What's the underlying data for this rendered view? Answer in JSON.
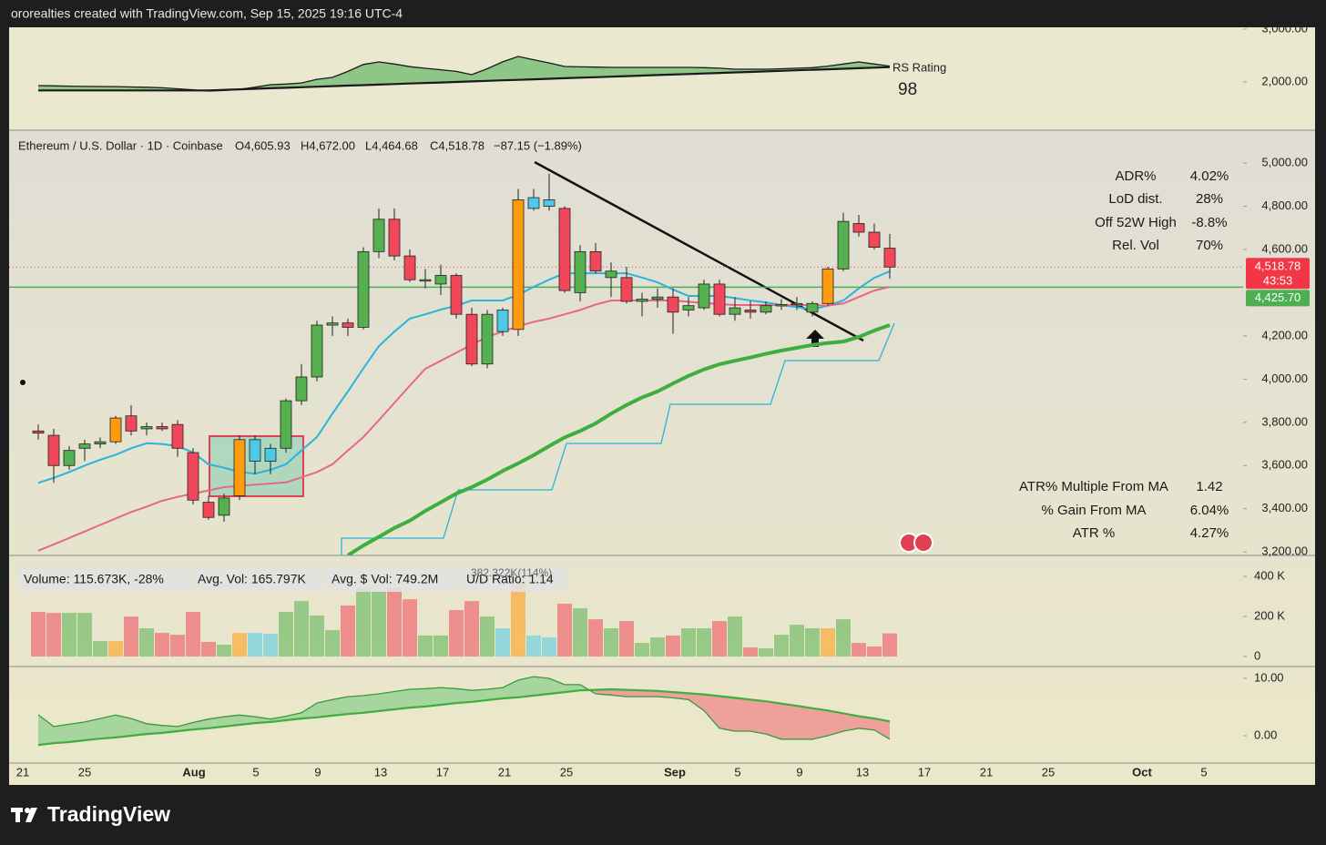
{
  "header": {
    "credit": "ororealties created with TradingView.com, Sep 15, 2025 19:16 UTC-4"
  },
  "footer": {
    "brand": "TradingView"
  },
  "x_axis": {
    "labels": [
      "21",
      "25",
      "Aug",
      "5",
      "9",
      "13",
      "17",
      "21",
      "25",
      "Sep",
      "5",
      "9",
      "13",
      "17",
      "21",
      "25",
      "Oct",
      "5"
    ]
  },
  "stats_top": [
    {
      "label": "ADR%",
      "value": "4.02%"
    },
    {
      "label": "LoD dist.",
      "value": "28%"
    },
    {
      "label": "Off 52W High",
      "value": "-8.8%"
    },
    {
      "label": "Rel. Vol",
      "value": "70%"
    }
  ],
  "stats_bottom": [
    {
      "label": "ATR% Multiple From MA",
      "value": "1.42"
    },
    {
      "label": "% Gain From MA",
      "value": "6.04%"
    },
    {
      "label": "ATR %",
      "value": "4.27%"
    }
  ],
  "chart_data": [
    {
      "type": "line",
      "title": "RS Rating",
      "rating": "98",
      "ylim": [
        1086,
        3034
      ],
      "yticks": [
        {
          "value": 3000,
          "label": "3,000.00"
        },
        {
          "value": 2000,
          "label": "2,000.00"
        }
      ],
      "series": [
        {
          "color": "#1a1a1a",
          "values": [
            1930,
            1925,
            1920,
            1915,
            1914,
            1912,
            1905,
            1900,
            1890,
            1870,
            1850,
            1828,
            1840,
            1860,
            1900,
            1948,
            1960,
            1980,
            2050,
            2086,
            2200,
            2330,
            2379,
            2340,
            2290,
            2259,
            2230,
            2200,
            2138,
            2250,
            2380,
            2483,
            2420,
            2360,
            2293,
            2285,
            2280,
            2276,
            2276,
            2276,
            2276,
            2276,
            2276,
            2270,
            2260,
            2241,
            2241,
            2241,
            2250,
            2260,
            2270,
            2300,
            2340,
            2379,
            2340,
            2300
          ]
        },
        {
          "color": "#1a1a1a",
          "values": [
            1840,
            1840,
            1840,
            1840,
            1840,
            1840,
            1840,
            1840,
            1840,
            1840,
            1840,
            1840,
            1850,
            1860,
            1870,
            1880,
            1890,
            1900,
            1910,
            1920,
            1930,
            1940,
            1950,
            1960,
            1970,
            1980,
            1990,
            2000,
            2010,
            2020,
            2030,
            2040,
            2050,
            2060,
            2070,
            2080,
            2090,
            2100,
            2110,
            2120,
            2130,
            2140,
            2150,
            2160,
            2170,
            2180,
            2190,
            2200,
            2210,
            2220,
            2230,
            2240,
            2250,
            2260,
            2270,
            2280
          ]
        }
      ],
      "fill_colors": [
        "#6dbb6d",
        "#e66a6a"
      ]
    },
    {
      "type": "candlestick",
      "title": "Ethereum / U.S. Dollar · 1D · Coinbase",
      "ohlc_labels": [
        "O4,605.93",
        "H4,672.00",
        "L4,464.68",
        "C4,518.78",
        "−87.15 (−1.89%)"
      ],
      "open": [
        3760,
        3740,
        3600,
        3680,
        3700,
        3710,
        3830,
        3770,
        3780,
        3790,
        3660,
        3430,
        3370,
        3460,
        3720,
        3620,
        3680,
        3900,
        4010,
        4250,
        4260,
        4240,
        4590,
        4740,
        4570,
        4460,
        4440,
        4480,
        4300,
        4070,
        4220,
        4230,
        4790,
        4800,
        4790,
        4400,
        4590,
        4470,
        4470,
        4360,
        4370,
        4380,
        4320,
        4330,
        4440,
        4300,
        4320,
        4310,
        4340,
        4350,
        4310,
        4350,
        4510,
        4720,
        4680,
        4605.93
      ],
      "high": [
        3790,
        3770,
        3690,
        3720,
        3730,
        3830,
        3880,
        3800,
        3800,
        3810,
        3680,
        3460,
        3470,
        3740,
        3740,
        3700,
        3910,
        4070,
        4270,
        4290,
        4280,
        4610,
        4790,
        4790,
        4600,
        4510,
        4530,
        4490,
        4330,
        4320,
        4330,
        4880,
        4880,
        4950,
        4800,
        4620,
        4630,
        4540,
        4520,
        4400,
        4420,
        4420,
        4380,
        4460,
        4460,
        4380,
        4360,
        4360,
        4370,
        4380,
        4360,
        4520,
        4770,
        4760,
        4720,
        4672.0
      ],
      "low": [
        3720,
        3520,
        3580,
        3620,
        3680,
        3700,
        3740,
        3740,
        3760,
        3640,
        3420,
        3350,
        3340,
        3440,
        3560,
        3560,
        3660,
        3880,
        3990,
        4200,
        4200,
        4230,
        4560,
        4550,
        4450,
        4420,
        4390,
        4280,
        4060,
        4050,
        4200,
        4200,
        4780,
        4780,
        4400,
        4360,
        4490,
        4380,
        4350,
        4290,
        4330,
        4210,
        4290,
        4320,
        4290,
        4270,
        4280,
        4300,
        4320,
        4320,
        4290,
        4340,
        4500,
        4660,
        4600,
        4464.68
      ],
      "close": [
        3750,
        3600,
        3670,
        3700,
        3710,
        3820,
        3760,
        3780,
        3770,
        3680,
        3440,
        3360,
        3450,
        3720,
        3620,
        3680,
        3900,
        4010,
        4250,
        4260,
        4240,
        4590,
        4740,
        4570,
        4460,
        4460,
        4480,
        4300,
        4070,
        4300,
        4320,
        4830,
        4840,
        4830,
        4410,
        4590,
        4500,
        4500,
        4360,
        4370,
        4380,
        4310,
        4340,
        4440,
        4300,
        4330,
        4310,
        4340,
        4345,
        4350,
        4350,
        4510,
        4730,
        4680,
        4610,
        4518.78
      ],
      "colors": [
        "#f0475a",
        "#f0475a",
        "#55b04f",
        "#55b04f",
        "#55b04f",
        "#ff9b0f",
        "#f0475a",
        "#55b04f",
        "#f0475a",
        "#f0475a",
        "#f0475a",
        "#f0475a",
        "#55b04f",
        "#ff9b0f",
        "#4ec8e6",
        "#4ec8e6",
        "#55b04f",
        "#55b04f",
        "#55b04f",
        "#55b04f",
        "#f0475a",
        "#55b04f",
        "#55b04f",
        "#f0475a",
        "#f0475a",
        "#55b04f",
        "#55b04f",
        "#f0475a",
        "#f0475a",
        "#55b04f",
        "#4ec8e6",
        "#ff9b0f",
        "#4ec8e6",
        "#4ec8e6",
        "#f0475a",
        "#55b04f",
        "#f0475a",
        "#55b04f",
        "#f0475a",
        "#55b04f",
        "#55b04f",
        "#f0475a",
        "#55b04f",
        "#55b04f",
        "#f0475a",
        "#55b04f",
        "#f0475a",
        "#55b04f",
        "#55b04f",
        "#55b04f",
        "#55b04f",
        "#ff9b0f",
        "#55b04f",
        "#f0475a",
        "#f0475a",
        "#f0475a"
      ],
      "lines": [
        {
          "color": "#2bb3d9",
          "width": 2,
          "values": [
            3520,
            3543,
            3570,
            3600,
            3627,
            3650,
            3680,
            3703,
            3700,
            3690,
            3660,
            3606,
            3590,
            3570,
            3563,
            3580,
            3606,
            3670,
            3732,
            3840,
            3943,
            4050,
            4153,
            4220,
            4280,
            4300,
            4322,
            4340,
            4364,
            4364,
            4364,
            4390,
            4427,
            4460,
            4490,
            4490,
            4490,
            4490,
            4490,
            4470,
            4448,
            4415,
            4385,
            4385,
            4385,
            4375,
            4364,
            4355,
            4343,
            4333,
            4322,
            4340,
            4364,
            4420,
            4469,
            4499
          ]
        },
        {
          "color": "#e8668a",
          "width": 2,
          "values": [
            3206,
            3235,
            3265,
            3295,
            3325,
            3355,
            3385,
            3410,
            3437,
            3455,
            3470,
            3485,
            3500,
            3506,
            3512,
            3517,
            3522,
            3545,
            3570,
            3606,
            3670,
            3732,
            3810,
            3890,
            3970,
            4048,
            4085,
            4122,
            4160,
            4195,
            4220,
            4245,
            4265,
            4280,
            4300,
            4320,
            4345,
            4364,
            4364,
            4364,
            4364,
            4364,
            4358,
            4352,
            4347,
            4343,
            4343,
            4343,
            4343,
            4343,
            4343,
            4340,
            4350,
            4380,
            4410,
            4427
          ]
        },
        {
          "color": "#3fae3f",
          "width": 4,
          "values": [
            null,
            null,
            null,
            null,
            null,
            null,
            null,
            null,
            null,
            null,
            null,
            null,
            null,
            null,
            null,
            null,
            null,
            null,
            null,
            null,
            3185,
            3230,
            3270,
            3311,
            3345,
            3390,
            3430,
            3470,
            3500,
            3535,
            3575,
            3610,
            3648,
            3690,
            3730,
            3760,
            3795,
            3840,
            3880,
            3915,
            3943,
            3980,
            4015,
            4045,
            4069,
            4085,
            4100,
            4117,
            4132,
            4145,
            4158,
            4167,
            4174,
            4195,
            4225,
            4250
          ]
        }
      ],
      "last_price": {
        "value": 4518.78,
        "label": "4,518.78",
        "countdown": "43:53",
        "color": "#f23645"
      },
      "level": {
        "value": 4425.7,
        "label": "4,425.70",
        "color": "#4caf50"
      },
      "ylim": [
        3184,
        5152
      ],
      "yticks": [
        {
          "value": 5000,
          "label": "5,000.00"
        },
        {
          "value": 4800,
          "label": "4,800.00"
        },
        {
          "value": 4600,
          "label": "4,600.00"
        },
        {
          "value": 4200,
          "label": "4,200.00"
        },
        {
          "value": 4000,
          "label": "4,000.00"
        },
        {
          "value": 3800,
          "label": "3,800.00"
        },
        {
          "value": 3600,
          "label": "3,600.00"
        },
        {
          "value": 3400,
          "label": "3,400.00"
        },
        {
          "value": 3200,
          "label": "3,200.00"
        }
      ]
    },
    {
      "type": "bar",
      "legend": [
        "Volume: 115.673K, -28%",
        "Avg. Vol: 165.797K",
        "Avg. $ Vol: 749.2M",
        "U/D Ratio: 1.14"
      ],
      "note": "382.322K(114%)",
      "values": [
        223000,
        218000,
        218000,
        218000,
        77000,
        77000,
        200000,
        141000,
        118000,
        109000,
        223000,
        73000,
        59000,
        118000,
        118000,
        114000,
        223000,
        277000,
        205000,
        132000,
        255000,
        345000,
        323000,
        345000,
        286000,
        105000,
        105000,
        232000,
        277000,
        200000,
        141000,
        368000,
        105000,
        95000,
        264000,
        241000,
        186000,
        141000,
        177000,
        68000,
        95000,
        105000,
        141000,
        141000,
        177000,
        200000,
        45000,
        41000,
        109000,
        159000,
        141000,
        141000,
        186000,
        68000,
        50000,
        115673
      ],
      "ylim": [
        -50000,
        505000
      ],
      "yticks": [
        0,
        {
          "value": 200000,
          "label": "200 K"
        },
        {
          "value": 400000,
          "label": "400 K"
        }
      ]
    },
    {
      "type": "line",
      "ylim": [
        -4.76,
        12.06
      ],
      "yticks": [
        {
          "value": 0,
          "label": "0.00"
        },
        {
          "value": 10,
          "label": "10.00"
        }
      ],
      "series": [
        {
          "color": "#3a9a3a",
          "values": [
            3.65,
            1.6,
            2.0,
            2.4,
            3.0,
            3.6,
            3.0,
            2.1,
            1.8,
            1.6,
            2.3,
            2.9,
            3.3,
            3.6,
            3.3,
            2.9,
            3.4,
            4.0,
            5.7,
            6.3,
            6.8,
            7.0,
            7.3,
            7.7,
            8.1,
            8.2,
            8.4,
            8.2,
            7.9,
            8.1,
            8.4,
            9.7,
            10.3,
            10.0,
            8.9,
            8.9,
            7.3,
            7.1,
            6.8,
            6.8,
            6.8,
            6.6,
            6.3,
            4.4,
            1.3,
            0.8,
            0.8,
            0.3,
            -0.6,
            -0.6,
            -0.6,
            0.0,
            0.8,
            1.3,
            1.0,
            -0.6
          ]
        },
        {
          "color": "#3fae3f",
          "values": [
            -1.6,
            -1.3,
            -1.1,
            -0.8,
            -0.5,
            -0.3,
            0.0,
            0.3,
            0.5,
            0.8,
            1.1,
            1.3,
            1.6,
            1.9,
            2.2,
            2.4,
            2.7,
            3.0,
            3.2,
            3.5,
            3.8,
            4.0,
            4.3,
            4.6,
            4.9,
            5.1,
            5.4,
            5.7,
            5.9,
            6.2,
            6.5,
            6.7,
            7.0,
            7.3,
            7.6,
            7.9,
            8.0,
            8.1,
            8.0,
            7.9,
            7.8,
            7.6,
            7.4,
            7.2,
            6.9,
            6.6,
            6.3,
            6.0,
            5.6,
            5.2,
            4.8,
            4.4,
            3.9,
            3.4,
            3.0,
            2.5
          ]
        }
      ],
      "fill_colors": [
        "#8fcf8f",
        "#ee8a8a"
      ]
    }
  ]
}
